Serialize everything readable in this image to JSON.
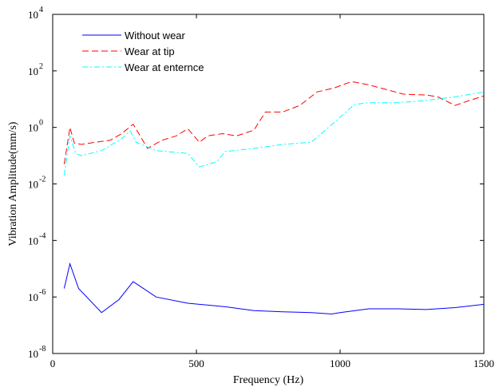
{
  "chart_data": {
    "type": "line",
    "xlabel": "Frequency (Hz)",
    "ylabel": "Vibration Amplitude(mm/s)",
    "xlim": [
      0,
      1500
    ],
    "ylim": [
      1e-08,
      10000
    ],
    "yscale": "log",
    "grid": false,
    "legend_position": "top-left",
    "x_ticks": [
      {
        "value": 0,
        "label": "0"
      },
      {
        "value": 500,
        "label": "500"
      },
      {
        "value": 1000,
        "label": "1000"
      },
      {
        "value": 1500,
        "label": "1500"
      }
    ],
    "y_ticks": [
      {
        "value": 1e-08,
        "base": "10",
        "exp": "-8"
      },
      {
        "value": 1e-06,
        "base": "10",
        "exp": "-6"
      },
      {
        "value": 0.0001,
        "base": "10",
        "exp": "-4"
      },
      {
        "value": 0.01,
        "base": "10",
        "exp": "-2"
      },
      {
        "value": 1,
        "base": "10",
        "exp": "0"
      },
      {
        "value": 100,
        "base": "10",
        "exp": "2"
      },
      {
        "value": 10000,
        "base": "10",
        "exp": "4"
      }
    ],
    "series": [
      {
        "name": "Without wear",
        "color": "#0000ff",
        "dash": "solid",
        "x": [
          40,
          60,
          90,
          170,
          230,
          280,
          360,
          470,
          600,
          700,
          800,
          900,
          970,
          1000,
          1100,
          1200,
          1300,
          1400,
          1500
        ],
        "y": [
          2e-06,
          1.5e-05,
          2e-06,
          2.8e-07,
          8e-07,
          3.5e-06,
          1e-06,
          6e-07,
          4.5e-07,
          3.3e-07,
          3e-07,
          2.8e-07,
          2.5e-07,
          2.8e-07,
          3.8e-07,
          3.8e-07,
          3.6e-07,
          4.2e-07,
          5.5e-07
        ]
      },
      {
        "name": "Wear at tip",
        "color": "#ff0000",
        "dash": "dashed",
        "x": [
          40,
          60,
          75,
          100,
          150,
          200,
          240,
          280,
          330,
          380,
          430,
          470,
          510,
          540,
          590,
          640,
          700,
          740,
          800,
          860,
          920,
          980,
          1040,
          1100,
          1160,
          1220,
          1300,
          1340,
          1400,
          1450,
          1500
        ],
        "y": [
          0.05,
          1.0,
          0.28,
          0.25,
          0.3,
          0.35,
          0.6,
          1.3,
          0.18,
          0.35,
          0.5,
          0.9,
          0.3,
          0.5,
          0.6,
          0.5,
          0.8,
          3.5,
          3.5,
          6,
          18,
          25,
          42,
          32,
          22,
          15,
          14,
          12,
          6,
          9,
          13
        ]
      },
      {
        "name": "Wear at enternce",
        "color": "#00ffff",
        "dash": "dashdot",
        "x": [
          40,
          60,
          80,
          100,
          170,
          240,
          270,
          290,
          360,
          470,
          510,
          570,
          600,
          700,
          800,
          900,
          980,
          1050,
          1100,
          1200,
          1300,
          1400,
          1500
        ],
        "y": [
          0.02,
          0.5,
          0.12,
          0.1,
          0.15,
          0.4,
          0.75,
          0.3,
          0.15,
          0.12,
          0.04,
          0.06,
          0.14,
          0.18,
          0.25,
          0.3,
          1.5,
          6.5,
          7.5,
          7.5,
          9,
          12,
          18
        ]
      }
    ]
  }
}
